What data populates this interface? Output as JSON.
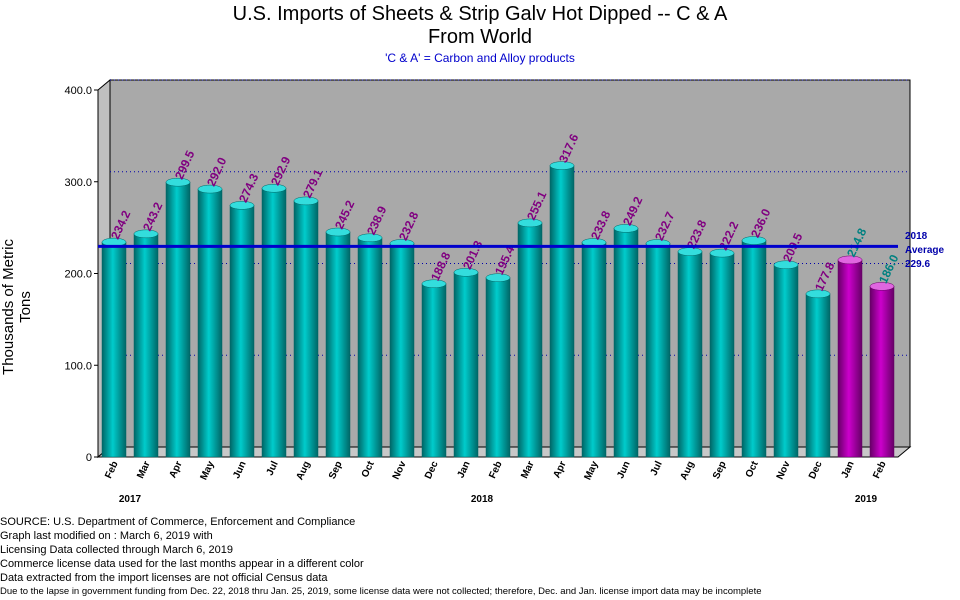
{
  "chart_data": {
    "type": "bar",
    "title": "U.S. Imports of Sheets & Strip Galv Hot Dipped -- C & A",
    "title_line2": "From World",
    "subtitle": "'C & A' = Carbon and Alloy products",
    "ylabel": "Thousands of Metric Tons",
    "ylim": [
      0,
      400
    ],
    "yticks": [
      "0",
      "100.0",
      "200.0",
      "300.0",
      "400.0"
    ],
    "categories": [
      "Feb",
      "Mar",
      "Apr",
      "May",
      "Jun",
      "Jul",
      "Aug",
      "Sep",
      "Oct",
      "Nov",
      "Dec",
      "Jan",
      "Feb",
      "Mar",
      "Apr",
      "May",
      "Jun",
      "Jul",
      "Aug",
      "Sep",
      "Oct",
      "Nov",
      "Dec",
      "Jan",
      "Feb"
    ],
    "year_labels": [
      {
        "text": "2017",
        "index": 0.5
      },
      {
        "text": "2018",
        "index": 11.5
      },
      {
        "text": "2019",
        "index": 23.5
      }
    ],
    "values": [
      234.2,
      243.2,
      299.5,
      292.0,
      274.3,
      292.9,
      279.1,
      245.2,
      238.9,
      232.8,
      188.8,
      201.3,
      195.4,
      255.1,
      317.6,
      233.8,
      249.2,
      232.7,
      223.8,
      222.2,
      236.0,
      209.5,
      177.8,
      214.8,
      186.0
    ],
    "value_labels": [
      "234.2",
      "243.2",
      "299.5",
      "292.0",
      "274.3",
      "292.9",
      "279.1",
      "245.2",
      "238.9",
      "232.8",
      "188.8",
      "201.3",
      "195.4",
      "255.1",
      "317.6",
      "233.8",
      "249.2",
      "232.7",
      "223.8",
      "222.2",
      "236.0",
      "209.5",
      "177.8",
      "214.8",
      "186.0"
    ],
    "license_month_indices": [
      23,
      24
    ],
    "average": {
      "value": 229.6,
      "label_lines": [
        "2018",
        "Average",
        "229.6"
      ]
    },
    "grid": true,
    "colors": {
      "bar": "#00cccc",
      "bar_dark": "#006666",
      "license_bar": "#cc00cc",
      "license_bar_dark": "#660066",
      "label": "#800080",
      "license_label": "#008080",
      "average_line": "#0000cc",
      "plot_bg": "#a9a9a9",
      "grid": "#0000aa"
    }
  },
  "footer": [
    "SOURCE: U.S. Department of Commerce, Enforcement and Compliance",
    "Graph last modified on : March 6, 2019      with",
    "Licensing Data collected through March 6, 2019",
    "Commerce license data used for the last months appear in a different color",
    "Data extracted from the import licenses are not official Census data",
    "Due to the lapse in government funding from Dec. 22, 2018 thru Jan. 25, 2019, some license data were not collected; therefore, Dec. and Jan. license import data may be incomplete"
  ]
}
